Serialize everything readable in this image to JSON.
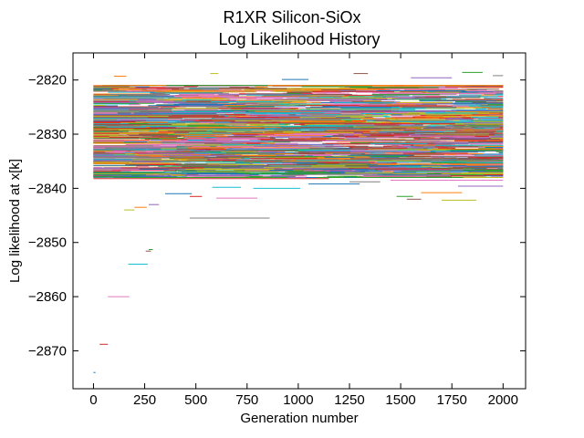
{
  "chart_data": {
    "type": "line",
    "title_lines": [
      "R1XR Silicon-SiOx",
      "Log Likelihood History"
    ],
    "xlabel": "Generation number",
    "ylabel": "Log likelihood at x[k]",
    "xlim": [
      -100,
      2110
    ],
    "ylim": [
      -2877,
      -2815
    ],
    "x_ticks": [
      0,
      250,
      500,
      750,
      1000,
      1250,
      1500,
      1750,
      2000
    ],
    "y_ticks": [
      -2870,
      -2860,
      -2850,
      -2840,
      -2830,
      -2820
    ],
    "x_tick_labels": [
      "0",
      "250",
      "500",
      "750",
      "1000",
      "1250",
      "1500",
      "1750",
      "2000"
    ],
    "y_tick_labels": [
      "−2870",
      "−2860",
      "−2850",
      "−2840",
      "−2830",
      "−2820"
    ],
    "grid": false,
    "legend": "none",
    "band": {
      "x_start": 0,
      "x_end": 2000,
      "y_top": -2821,
      "y_bottom": -2838,
      "n_chains": 280
    },
    "colors": [
      "#1f77b4",
      "#ff7f0e",
      "#2ca02c",
      "#d62728",
      "#9467bd",
      "#8c564b",
      "#e377c2",
      "#7f7f7f",
      "#bcbd22",
      "#17becf"
    ],
    "series": [
      {
        "x": [
          0,
          10
        ],
        "y": [
          -2874,
          -2874
        ]
      },
      {
        "x": [
          30,
          70
        ],
        "y": [
          -2868.8,
          -2868.8
        ]
      },
      {
        "x": [
          70,
          175
        ],
        "y": [
          -2860,
          -2860
        ]
      },
      {
        "x": [
          170,
          265
        ],
        "y": [
          -2854,
          -2854
        ]
      },
      {
        "x": [
          270,
          290
        ],
        "y": [
          -2851.3,
          -2851.3
        ]
      },
      {
        "x": [
          255,
          280
        ],
        "y": [
          -2851.6,
          -2851.6
        ]
      },
      {
        "x": [
          150,
          200
        ],
        "y": [
          -2844,
          -2844
        ]
      },
      {
        "x": [
          200,
          260
        ],
        "y": [
          -2843.5,
          -2843.5
        ]
      },
      {
        "x": [
          270,
          320
        ],
        "y": [
          -2843,
          -2843
        ]
      },
      {
        "x": [
          470,
          860
        ],
        "y": [
          -2845.5,
          -2845.5
        ]
      },
      {
        "x": [
          350,
          480
        ],
        "y": [
          -2841,
          -2841
        ]
      },
      {
        "x": [
          470,
          530
        ],
        "y": [
          -2841.5,
          -2841.5
        ]
      },
      {
        "x": [
          600,
          800
        ],
        "y": [
          -2841.8,
          -2841.8
        ]
      },
      {
        "x": [
          780,
          1010
        ],
        "y": [
          -2840,
          -2840
        ]
      },
      {
        "x": [
          1480,
          1560
        ],
        "y": [
          -2841.5,
          -2841.5
        ]
      },
      {
        "x": [
          1530,
          1600
        ],
        "y": [
          -2842,
          -2842
        ]
      },
      {
        "x": [
          1700,
          1870
        ],
        "y": [
          -2842.2,
          -2842.2
        ]
      },
      {
        "x": [
          1600,
          1800
        ],
        "y": [
          -2840.8,
          -2840.8
        ]
      },
      {
        "x": [
          1780,
          2000
        ],
        "y": [
          -2839.6,
          -2839.6
        ]
      },
      {
        "x": [
          1250,
          1400
        ],
        "y": [
          -2838.8,
          -2838.8
        ]
      },
      {
        "x": [
          1050,
          1300
        ],
        "y": [
          -2839.2,
          -2839.2
        ]
      },
      {
        "x": [
          0,
          1150
        ],
        "y": [
          -2838.2,
          -2838.2
        ]
      },
      {
        "x": [
          1450,
          2000
        ],
        "y": [
          -2838.5,
          -2838.5
        ]
      },
      {
        "x": [
          580,
          720
        ],
        "y": [
          -2839.8,
          -2839.8
        ]
      },
      {
        "x": [
          1800,
          1900
        ],
        "y": [
          -2818.6,
          -2818.6
        ]
      },
      {
        "x": [
          1270,
          1340
        ],
        "y": [
          -2818.8,
          -2818.8
        ]
      },
      {
        "x": [
          570,
          610
        ],
        "y": [
          -2818.8,
          -2818.8
        ]
      },
      {
        "x": [
          100,
          160
        ],
        "y": [
          -2819.3,
          -2819.3
        ]
      },
      {
        "x": [
          1550,
          1750
        ],
        "y": [
          -2819.6,
          -2819.6
        ]
      },
      {
        "x": [
          1950,
          2000
        ],
        "y": [
          -2819.2,
          -2819.2
        ]
      },
      {
        "x": [
          920,
          1050
        ],
        "y": [
          -2819.9,
          -2819.9
        ]
      }
    ]
  }
}
